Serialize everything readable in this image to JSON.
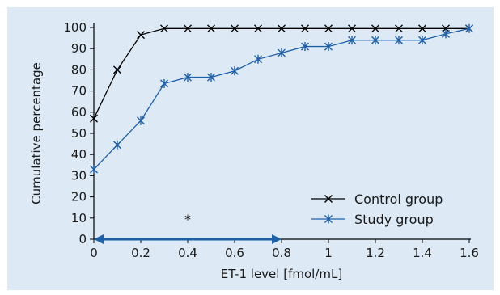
{
  "chart_data": {
    "type": "line",
    "xlabel": "ET-1 level [fmol/mL]",
    "ylabel": "Cumulative percentage",
    "xlim": [
      0,
      1.6
    ],
    "ylim": [
      0,
      100
    ],
    "xticks": [
      0,
      0.2,
      0.4,
      0.6,
      0.8,
      1,
      1.2,
      1.4,
      1.6
    ],
    "xtick_labels": [
      "0",
      "0.2",
      "0.4",
      "0.6",
      "0.8",
      "1",
      "1.2",
      "1.4",
      "1.6"
    ],
    "yticks": [
      0,
      10,
      20,
      30,
      40,
      50,
      60,
      70,
      80,
      90,
      100
    ],
    "ytick_labels": [
      "0",
      "10",
      "20",
      "30",
      "40",
      "50",
      "60",
      "70",
      "80",
      "90",
      "100"
    ],
    "grid": false,
    "legend_position": "bottom-right",
    "series": [
      {
        "name": "Control group",
        "color": "#000000",
        "marker": "x",
        "x": [
          0,
          0.1,
          0.2,
          0.3,
          0.4,
          0.5,
          0.6,
          0.7,
          0.8,
          0.9,
          1.0,
          1.1,
          1.2,
          1.3,
          1.4,
          1.5,
          1.6
        ],
        "y": [
          57,
          80,
          96.5,
          99.5,
          99.5,
          99.5,
          99.5,
          99.5,
          99.5,
          99.5,
          99.5,
          99.5,
          99.5,
          99.5,
          99.5,
          99.5,
          99.5
        ]
      },
      {
        "name": "Study group",
        "color": "#1f5fa6",
        "marker": "asterisk",
        "x": [
          0,
          0.1,
          0.2,
          0.3,
          0.4,
          0.5,
          0.6,
          0.7,
          0.8,
          0.9,
          1.0,
          1.1,
          1.2,
          1.3,
          1.4,
          1.5,
          1.6
        ],
        "y": [
          33,
          44.5,
          56,
          73.5,
          76.5,
          76.5,
          79.5,
          85,
          88,
          91,
          91,
          94,
          94,
          94,
          94,
          97,
          99.5
        ]
      }
    ],
    "annotations": [
      {
        "text": "*",
        "x": 0.4,
        "y": 10
      }
    ],
    "range_arrow": {
      "from": 0,
      "to": 0.8,
      "y": 0,
      "color": "#1f5fa6"
    }
  }
}
